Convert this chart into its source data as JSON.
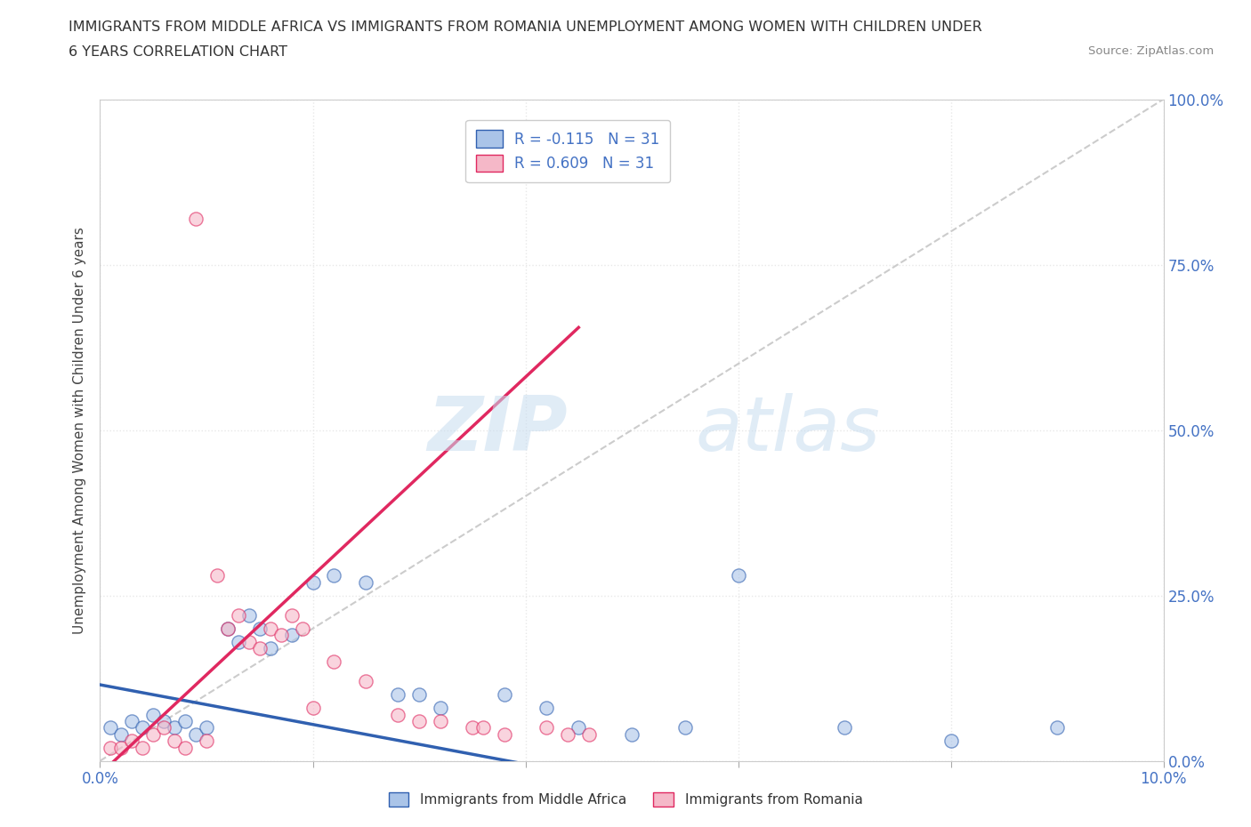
{
  "title_line1": "IMMIGRANTS FROM MIDDLE AFRICA VS IMMIGRANTS FROM ROMANIA UNEMPLOYMENT AMONG WOMEN WITH CHILDREN UNDER",
  "title_line2": "6 YEARS CORRELATION CHART",
  "source": "Source: ZipAtlas.com",
  "ylabel": "Unemployment Among Women with Children Under 6 years",
  "r_blue": -0.115,
  "r_pink": 0.609,
  "n_blue": 31,
  "n_pink": 31,
  "blue_color": "#aac4e8",
  "pink_color": "#f5b8c8",
  "blue_line_color": "#3060b0",
  "pink_line_color": "#e02860",
  "diag_color": "#cccccc",
  "blue_scatter_x": [
    0.001,
    0.002,
    0.003,
    0.004,
    0.005,
    0.006,
    0.007,
    0.008,
    0.009,
    0.01,
    0.012,
    0.013,
    0.014,
    0.015,
    0.016,
    0.018,
    0.02,
    0.022,
    0.025,
    0.028,
    0.03,
    0.032,
    0.038,
    0.042,
    0.045,
    0.05,
    0.055,
    0.06,
    0.07,
    0.08,
    0.09
  ],
  "blue_scatter_y": [
    0.05,
    0.04,
    0.06,
    0.05,
    0.07,
    0.06,
    0.05,
    0.06,
    0.04,
    0.05,
    0.2,
    0.18,
    0.22,
    0.2,
    0.17,
    0.19,
    0.27,
    0.28,
    0.27,
    0.1,
    0.1,
    0.08,
    0.1,
    0.08,
    0.05,
    0.04,
    0.05,
    0.28,
    0.05,
    0.03,
    0.05
  ],
  "pink_scatter_x": [
    0.001,
    0.002,
    0.003,
    0.004,
    0.005,
    0.006,
    0.007,
    0.008,
    0.009,
    0.01,
    0.011,
    0.012,
    0.013,
    0.014,
    0.015,
    0.016,
    0.017,
    0.018,
    0.019,
    0.02,
    0.022,
    0.025,
    0.028,
    0.03,
    0.032,
    0.035,
    0.036,
    0.038,
    0.042,
    0.044,
    0.046
  ],
  "pink_scatter_y": [
    0.02,
    0.02,
    0.03,
    0.02,
    0.04,
    0.05,
    0.03,
    0.02,
    0.82,
    0.03,
    0.28,
    0.2,
    0.22,
    0.18,
    0.17,
    0.2,
    0.19,
    0.22,
    0.2,
    0.08,
    0.15,
    0.12,
    0.07,
    0.06,
    0.06,
    0.05,
    0.05,
    0.04,
    0.05,
    0.04,
    0.04
  ],
  "xlim": [
    0.0,
    0.1
  ],
  "ylim": [
    0.0,
    1.0
  ],
  "xticks": [
    0.0,
    0.02,
    0.04,
    0.06,
    0.08,
    0.1
  ],
  "yticks": [
    0.0,
    0.25,
    0.5,
    0.75,
    1.0
  ],
  "ytick_labels_right": [
    "0.0%",
    "25.0%",
    "50.0%",
    "75.0%",
    "100.0%"
  ],
  "watermark_zip": "ZIP",
  "watermark_atlas": "atlas",
  "background_color": "#ffffff",
  "grid_color": "#e8e8e8",
  "legend_label_blue": "R = -0.115   N = 31",
  "legend_label_pink": "R = 0.609   N = 31",
  "bottom_label_blue": "Immigrants from Middle Africa",
  "bottom_label_pink": "Immigrants from Romania"
}
